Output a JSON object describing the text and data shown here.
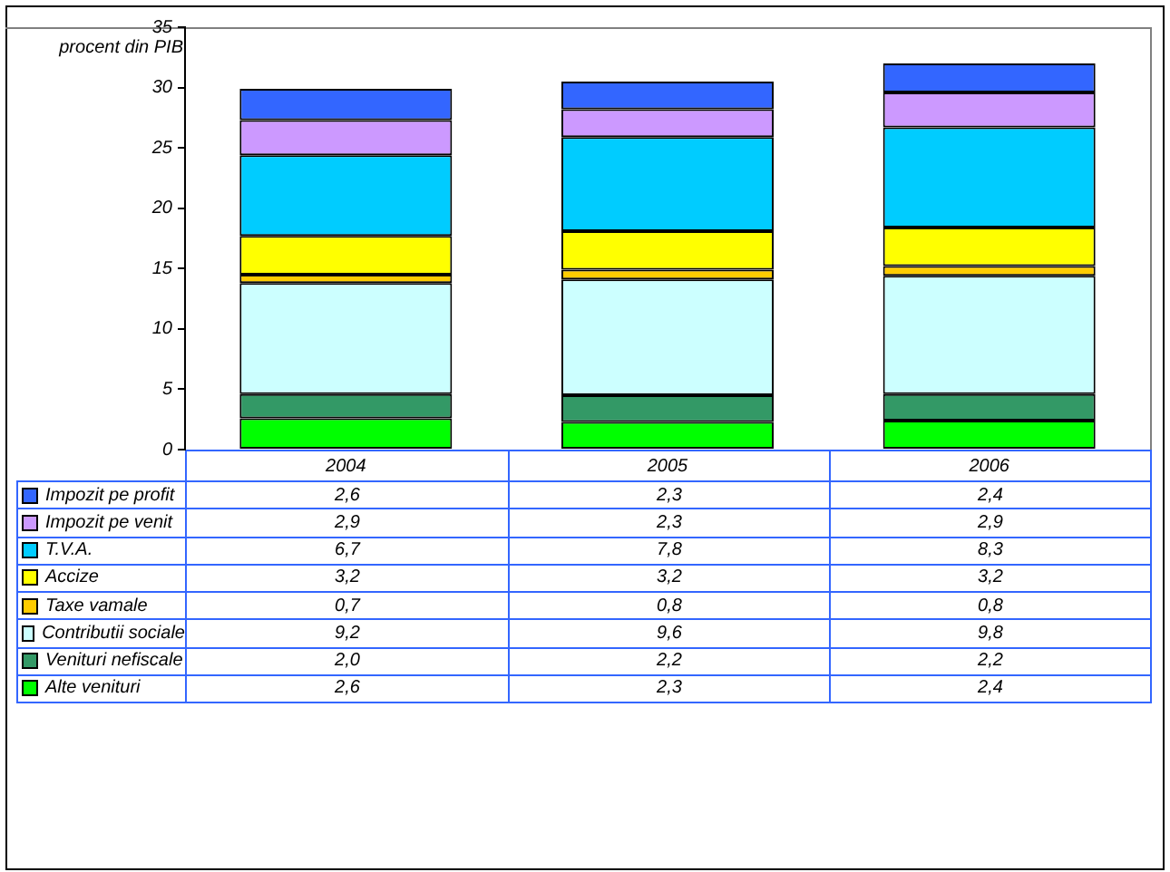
{
  "chart_data": {
    "type": "bar",
    "stacked": true,
    "ylabel": "procent din PIB",
    "categories": [
      "2004",
      "2005",
      "2006"
    ],
    "ylim": [
      0,
      35
    ],
    "yticks": [
      0,
      5,
      10,
      15,
      20,
      25,
      30,
      35
    ],
    "grid": false,
    "legend": "bottom",
    "series": [
      {
        "name": "Alte venituri",
        "color": "#00ff00",
        "values": [
          2.6,
          2.3,
          2.4
        ],
        "value_labels": [
          "2,6",
          "2,3",
          "2,4"
        ]
      },
      {
        "name": "Venituri nefiscale",
        "color": "#339966",
        "values": [
          2.0,
          2.2,
          2.2
        ],
        "value_labels": [
          "2,0",
          "2,2",
          "2,2"
        ]
      },
      {
        "name": "Contributii sociale",
        "color": "#ccffff",
        "values": [
          9.2,
          9.6,
          9.8
        ],
        "value_labels": [
          "9,2",
          "9,6",
          "9,8"
        ]
      },
      {
        "name": "Taxe vamale",
        "color": "#ffcc00",
        "values": [
          0.7,
          0.8,
          0.8
        ],
        "value_labels": [
          "0,7",
          "0,8",
          "0,8"
        ]
      },
      {
        "name": "Accize",
        "color": "#ffff00",
        "values": [
          3.2,
          3.2,
          3.2
        ],
        "value_labels": [
          "3,2",
          "3,2",
          "3,2"
        ]
      },
      {
        "name": "T.V.A.",
        "color": "#00ccff",
        "values": [
          6.7,
          7.8,
          8.3
        ],
        "value_labels": [
          "6,7",
          "7,8",
          "8,3"
        ]
      },
      {
        "name": "Impozit pe venit",
        "color": "#cc99ff",
        "values": [
          2.9,
          2.3,
          2.9
        ],
        "value_labels": [
          "2,9",
          "2,3",
          "2,9"
        ]
      },
      {
        "name": "Impozit pe profit",
        "color": "#3366ff",
        "values": [
          2.6,
          2.3,
          2.4
        ],
        "value_labels": [
          "2,6",
          "2,3",
          "2,4"
        ]
      }
    ]
  }
}
